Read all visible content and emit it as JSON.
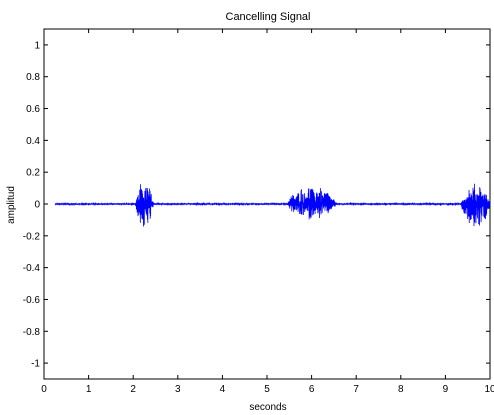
{
  "chart_data": {
    "type": "line",
    "title": "Cancelling Signal",
    "xlabel": "seconds",
    "ylabel": "amplitud",
    "xlim": [
      0,
      10
    ],
    "ylim": [
      -1.1,
      1.1
    ],
    "xticks": [
      0,
      1,
      2,
      3,
      4,
      5,
      6,
      7,
      8,
      9,
      10
    ],
    "yticks": [
      -1,
      -0.8,
      -0.6,
      -0.4,
      -0.2,
      0,
      0.2,
      0.4,
      0.6,
      0.8,
      1
    ],
    "xtick_labels": [
      "0",
      "1",
      "2",
      "3",
      "4",
      "5",
      "6",
      "7",
      "8",
      "9",
      "10"
    ],
    "ytick_labels": [
      "-1",
      "-0.8",
      "-0.6",
      "-0.4",
      "-0.2",
      "0",
      "0.2",
      "0.4",
      "0.6",
      "0.8",
      "1"
    ],
    "grid": false,
    "line_color": "#0000ff",
    "series": [
      {
        "signal_start": 0.25,
        "signal_end": 10,
        "baseline_noise": 0.005,
        "bursts": [
          {
            "start": 2.05,
            "end": 2.45,
            "max": 0.15,
            "min": -0.17
          },
          {
            "start": 5.45,
            "end": 6.55,
            "max": 0.12,
            "min": -0.1
          },
          {
            "start": 9.35,
            "end": 10.0,
            "max": 0.13,
            "min": -0.15
          }
        ]
      }
    ]
  }
}
